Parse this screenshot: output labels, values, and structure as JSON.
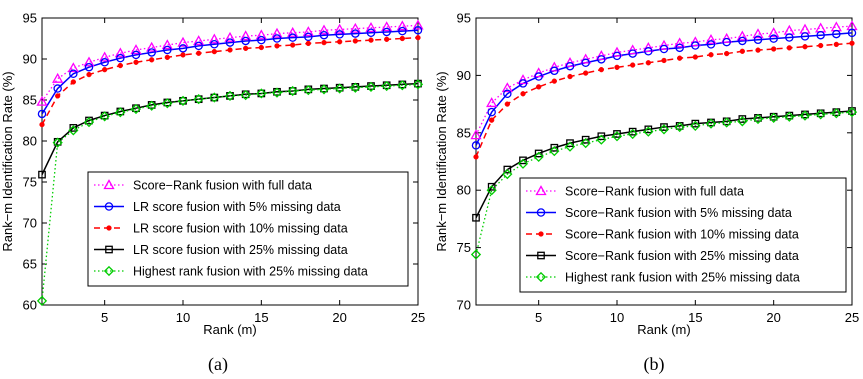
{
  "chart_data": [
    {
      "type": "line",
      "caption": "(a)",
      "xlabel": "Rank (m)",
      "ylabel": "Rank−m Identification Rate (%)",
      "xlim": [
        1,
        25
      ],
      "ylim": [
        60,
        95
      ],
      "xticks": [
        5,
        10,
        15,
        20,
        25
      ],
      "yticks": [
        60,
        65,
        70,
        75,
        80,
        85,
        90,
        95
      ],
      "grid": false,
      "legend_position": "bottom-left",
      "x": [
        1,
        2,
        3,
        4,
        5,
        6,
        7,
        8,
        9,
        10,
        11,
        12,
        13,
        14,
        15,
        16,
        17,
        18,
        19,
        20,
        21,
        22,
        23,
        24,
        25
      ],
      "series": [
        {
          "name": "Score−Rank fusion with full data",
          "color": "#ff00ff",
          "line": "dotted",
          "marker": "triangle",
          "values": [
            84.8,
            87.6,
            88.9,
            89.6,
            90.2,
            90.7,
            91.1,
            91.4,
            91.7,
            92.0,
            92.2,
            92.4,
            92.6,
            92.8,
            92.9,
            93.1,
            93.2,
            93.3,
            93.5,
            93.6,
            93.7,
            93.8,
            93.9,
            94.0,
            94.1
          ]
        },
        {
          "name": "LR score fusion with 5% missing data",
          "color": "#0000ff",
          "line": "solid",
          "marker": "circle",
          "values": [
            83.3,
            86.4,
            88.2,
            89.0,
            89.6,
            90.1,
            90.5,
            90.8,
            91.1,
            91.3,
            91.6,
            91.8,
            92.0,
            92.2,
            92.3,
            92.5,
            92.6,
            92.7,
            92.9,
            93.0,
            93.1,
            93.2,
            93.3,
            93.4,
            93.5
          ]
        },
        {
          "name": "LR score fusion with 10% missing data",
          "color": "#ff0000",
          "line": "dashed",
          "marker": "dot",
          "values": [
            82.0,
            85.5,
            87.2,
            88.1,
            88.7,
            89.2,
            89.6,
            89.9,
            90.2,
            90.5,
            90.7,
            90.9,
            91.1,
            91.3,
            91.4,
            91.6,
            91.7,
            91.9,
            92.0,
            92.1,
            92.2,
            92.3,
            92.4,
            92.5,
            92.6
          ]
        },
        {
          "name": "LR score fusion with 25% missing data",
          "color": "#000000",
          "line": "solid",
          "marker": "square",
          "values": [
            75.9,
            79.9,
            81.6,
            82.5,
            83.1,
            83.6,
            84.0,
            84.4,
            84.7,
            84.9,
            85.1,
            85.3,
            85.5,
            85.7,
            85.8,
            86.0,
            86.1,
            86.3,
            86.4,
            86.5,
            86.6,
            86.7,
            86.8,
            86.9,
            87.0
          ]
        },
        {
          "name": "Highest rank fusion with 25% missing data",
          "color": "#00cc00",
          "line": "dotted",
          "marker": "diamond",
          "values": [
            60.5,
            79.8,
            81.3,
            82.3,
            83.0,
            83.5,
            83.9,
            84.3,
            84.6,
            84.9,
            85.1,
            85.3,
            85.5,
            85.6,
            85.8,
            85.9,
            86.1,
            86.2,
            86.3,
            86.4,
            86.5,
            86.6,
            86.7,
            86.8,
            86.9
          ]
        }
      ]
    },
    {
      "type": "line",
      "caption": "(b)",
      "xlabel": "Rank (m)",
      "ylabel": "Rank−m Identification Rate (%)",
      "xlim": [
        1,
        25
      ],
      "ylim": [
        70,
        95
      ],
      "xticks": [
        5,
        10,
        15,
        20,
        25
      ],
      "yticks": [
        70,
        75,
        80,
        85,
        90,
        95
      ],
      "grid": false,
      "legend_position": "bottom-right",
      "x": [
        1,
        2,
        3,
        4,
        5,
        6,
        7,
        8,
        9,
        10,
        11,
        12,
        13,
        14,
        15,
        16,
        17,
        18,
        19,
        20,
        21,
        22,
        23,
        24,
        25
      ],
      "series": [
        {
          "name": "Score−Rank fusion with full data",
          "color": "#ff00ff",
          "line": "dotted",
          "marker": "triangle",
          "values": [
            84.8,
            87.6,
            88.9,
            89.6,
            90.2,
            90.7,
            91.1,
            91.4,
            91.7,
            92.0,
            92.2,
            92.4,
            92.6,
            92.8,
            92.9,
            93.1,
            93.2,
            93.4,
            93.6,
            93.7,
            93.9,
            94.0,
            94.1,
            94.2,
            94.3
          ]
        },
        {
          "name": "Score−Rank fusion with 5% missing data",
          "color": "#0000ff",
          "line": "solid",
          "marker": "circle",
          "values": [
            83.9,
            86.8,
            88.4,
            89.3,
            89.9,
            90.4,
            90.8,
            91.1,
            91.4,
            91.7,
            91.9,
            92.1,
            92.3,
            92.4,
            92.6,
            92.7,
            92.9,
            93.0,
            93.1,
            93.2,
            93.3,
            93.4,
            93.5,
            93.6,
            93.7
          ]
        },
        {
          "name": "Score−Rank fusion with 10% missing data",
          "color": "#ff0000",
          "line": "dashed",
          "marker": "dot",
          "values": [
            82.9,
            86.1,
            87.5,
            88.4,
            89.0,
            89.5,
            89.9,
            90.2,
            90.5,
            90.7,
            90.9,
            91.1,
            91.3,
            91.5,
            91.6,
            91.8,
            91.9,
            92.1,
            92.2,
            92.3,
            92.4,
            92.5,
            92.6,
            92.7,
            92.8
          ]
        },
        {
          "name": "Score−Rank fusion with 25% missing data",
          "color": "#000000",
          "line": "solid",
          "marker": "square",
          "values": [
            77.6,
            80.3,
            81.8,
            82.6,
            83.2,
            83.7,
            84.1,
            84.4,
            84.7,
            84.9,
            85.1,
            85.3,
            85.5,
            85.6,
            85.8,
            85.9,
            86.0,
            86.2,
            86.3,
            86.4,
            86.5,
            86.6,
            86.7,
            86.8,
            86.9
          ]
        },
        {
          "name": "Highest rank fusion with 25% missing data",
          "color": "#00cc00",
          "line": "dotted",
          "marker": "diamond",
          "values": [
            74.4,
            80.0,
            81.4,
            82.3,
            82.9,
            83.4,
            83.8,
            84.1,
            84.4,
            84.7,
            84.9,
            85.1,
            85.3,
            85.5,
            85.6,
            85.8,
            85.9,
            86.0,
            86.2,
            86.3,
            86.4,
            86.5,
            86.6,
            86.7,
            86.8
          ]
        }
      ]
    }
  ]
}
